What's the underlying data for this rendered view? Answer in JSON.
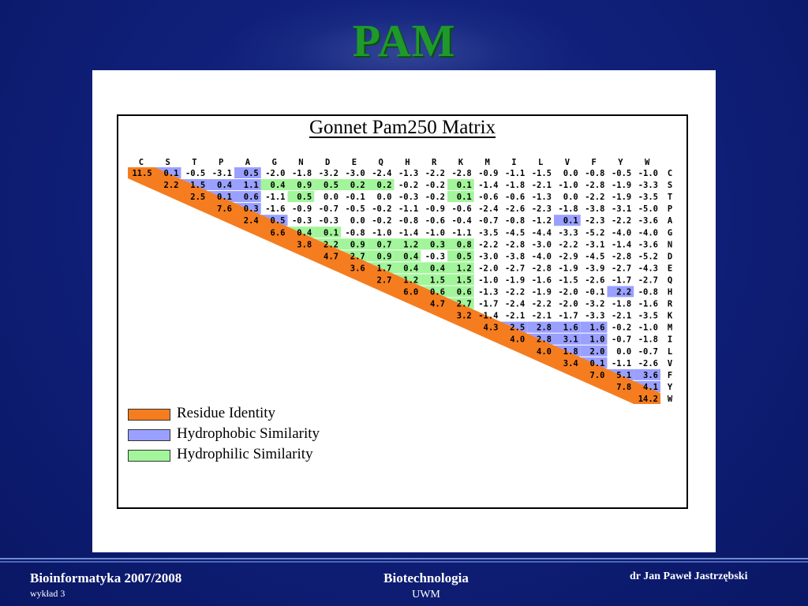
{
  "slide": {
    "title": "PAM"
  },
  "matrix": {
    "title": "Gonnet Pam250 Matrix",
    "residues": [
      "C",
      "S",
      "T",
      "P",
      "A",
      "G",
      "N",
      "D",
      "E",
      "Q",
      "H",
      "R",
      "K",
      "M",
      "I",
      "L",
      "V",
      "F",
      "Y",
      "W"
    ],
    "rows": [
      [
        "11.5",
        "0.1",
        "-0.5",
        "-3.1",
        "0.5",
        "-2.0",
        "-1.8",
        "-3.2",
        "-3.0",
        "-2.4",
        "-1.3",
        "-2.2",
        "-2.8",
        "-0.9",
        "-1.1",
        "-1.5",
        "0.0",
        "-0.8",
        "-0.5",
        "-1.0"
      ],
      [
        "2.2",
        "1.5",
        "0.4",
        "1.1",
        "0.4",
        "0.9",
        "0.5",
        "0.2",
        "0.2",
        "-0.2",
        "-0.2",
        "0.1",
        "-1.4",
        "-1.8",
        "-2.1",
        "-1.0",
        "-2.8",
        "-1.9",
        "-3.3"
      ],
      [
        "2.5",
        "0.1",
        "0.6",
        "-1.1",
        "0.5",
        "0.0",
        "-0.1",
        "0.0",
        "-0.3",
        "-0.2",
        "0.1",
        "-0.6",
        "-0.6",
        "-1.3",
        "0.0",
        "-2.2",
        "-1.9",
        "-3.5"
      ],
      [
        "7.6",
        "0.3",
        "-1.6",
        "-0.9",
        "-0.7",
        "-0.5",
        "-0.2",
        "-1.1",
        "-0.9",
        "-0.6",
        "-2.4",
        "-2.6",
        "-2.3",
        "-1.8",
        "-3.8",
        "-3.1",
        "-5.0"
      ],
      [
        "2.4",
        "0.5",
        "-0.3",
        "-0.3",
        "0.0",
        "-0.2",
        "-0.8",
        "-0.6",
        "-0.4",
        "-0.7",
        "-0.8",
        "-1.2",
        "0.1",
        "-2.3",
        "-2.2",
        "-3.6"
      ],
      [
        "6.6",
        "0.4",
        "0.1",
        "-0.8",
        "-1.0",
        "-1.4",
        "-1.0",
        "-1.1",
        "-3.5",
        "-4.5",
        "-4.4",
        "-3.3",
        "-5.2",
        "-4.0",
        "-4.0"
      ],
      [
        "3.8",
        "2.2",
        "0.9",
        "0.7",
        "1.2",
        "0.3",
        "0.8",
        "-2.2",
        "-2.8",
        "-3.0",
        "-2.2",
        "-3.1",
        "-1.4",
        "-3.6"
      ],
      [
        "4.7",
        "2.7",
        "0.9",
        "0.4",
        "-0.3",
        "0.5",
        "-3.0",
        "-3.8",
        "-4.0",
        "-2.9",
        "-4.5",
        "-2.8",
        "-5.2"
      ],
      [
        "3.6",
        "1.7",
        "0.4",
        "0.4",
        "1.2",
        "-2.0",
        "-2.7",
        "-2.8",
        "-1.9",
        "-3.9",
        "-2.7",
        "-4.3"
      ],
      [
        "2.7",
        "1.2",
        "1.5",
        "1.5",
        "-1.0",
        "-1.9",
        "-1.6",
        "-1.5",
        "-2.6",
        "-1.7",
        "-2.7"
      ],
      [
        "6.0",
        "0.6",
        "0.6",
        "-1.3",
        "-2.2",
        "-1.9",
        "-2.0",
        "-0.1",
        "2.2",
        "-0.8"
      ],
      [
        "4.7",
        "2.7",
        "-1.7",
        "-2.4",
        "-2.2",
        "-2.0",
        "-3.2",
        "-1.8",
        "-1.6"
      ],
      [
        "3.2",
        "-1.4",
        "-2.1",
        "-2.1",
        "-1.7",
        "-3.3",
        "-2.1",
        "-3.5"
      ],
      [
        "4.3",
        "2.5",
        "2.8",
        "1.6",
        "1.6",
        "-0.2",
        "-1.0"
      ],
      [
        "4.0",
        "2.8",
        "3.1",
        "1.0",
        "-0.7",
        "-1.8"
      ],
      [
        "4.0",
        "1.8",
        "2.0",
        "0.0",
        "-0.7"
      ],
      [
        "3.4",
        "0.1",
        "-1.1",
        "-2.6"
      ],
      [
        "7.0",
        "5.1",
        "3.6"
      ],
      [
        "7.8",
        "4.1"
      ],
      [
        "14.2"
      ]
    ],
    "hydrophobic_cells": [
      [
        0,
        1
      ],
      [
        0,
        4
      ],
      [
        1,
        2
      ],
      [
        1,
        3
      ],
      [
        1,
        4
      ],
      [
        2,
        3
      ],
      [
        2,
        4
      ],
      [
        3,
        4
      ],
      [
        4,
        5
      ],
      [
        4,
        16
      ],
      [
        10,
        18
      ],
      [
        13,
        14
      ],
      [
        13,
        15
      ],
      [
        13,
        16
      ],
      [
        13,
        17
      ],
      [
        14,
        15
      ],
      [
        14,
        16
      ],
      [
        14,
        17
      ],
      [
        15,
        16
      ],
      [
        15,
        17
      ],
      [
        16,
        17
      ],
      [
        17,
        18
      ],
      [
        17,
        19
      ],
      [
        18,
        19
      ]
    ],
    "hydrophilic_cells": [
      [
        1,
        5
      ],
      [
        1,
        6
      ],
      [
        1,
        7
      ],
      [
        1,
        8
      ],
      [
        1,
        9
      ],
      [
        1,
        12
      ],
      [
        2,
        6
      ],
      [
        2,
        12
      ],
      [
        5,
        6
      ],
      [
        5,
        7
      ],
      [
        6,
        7
      ],
      [
        6,
        8
      ],
      [
        6,
        9
      ],
      [
        6,
        10
      ],
      [
        6,
        11
      ],
      [
        6,
        12
      ],
      [
        7,
        8
      ],
      [
        7,
        9
      ],
      [
        7,
        10
      ],
      [
        7,
        12
      ],
      [
        8,
        9
      ],
      [
        8,
        10
      ],
      [
        8,
        11
      ],
      [
        8,
        12
      ],
      [
        9,
        10
      ],
      [
        9,
        11
      ],
      [
        9,
        12
      ],
      [
        10,
        11
      ],
      [
        10,
        12
      ],
      [
        11,
        12
      ]
    ]
  },
  "legend": [
    {
      "label": "Residue Identity",
      "color": "#f57d1f"
    },
    {
      "label": "Hydrophobic Similarity",
      "color": "#9aa0ff"
    },
    {
      "label": "Hydrophilic Similarity",
      "color": "#a2f59a"
    }
  ],
  "footer": {
    "course": "Bioinformatyka 2007/2008",
    "lecture": "wykład 3",
    "field": "Biotechnologia",
    "university": "UWM",
    "author": "dr Jan Paweł Jastrzębski"
  }
}
